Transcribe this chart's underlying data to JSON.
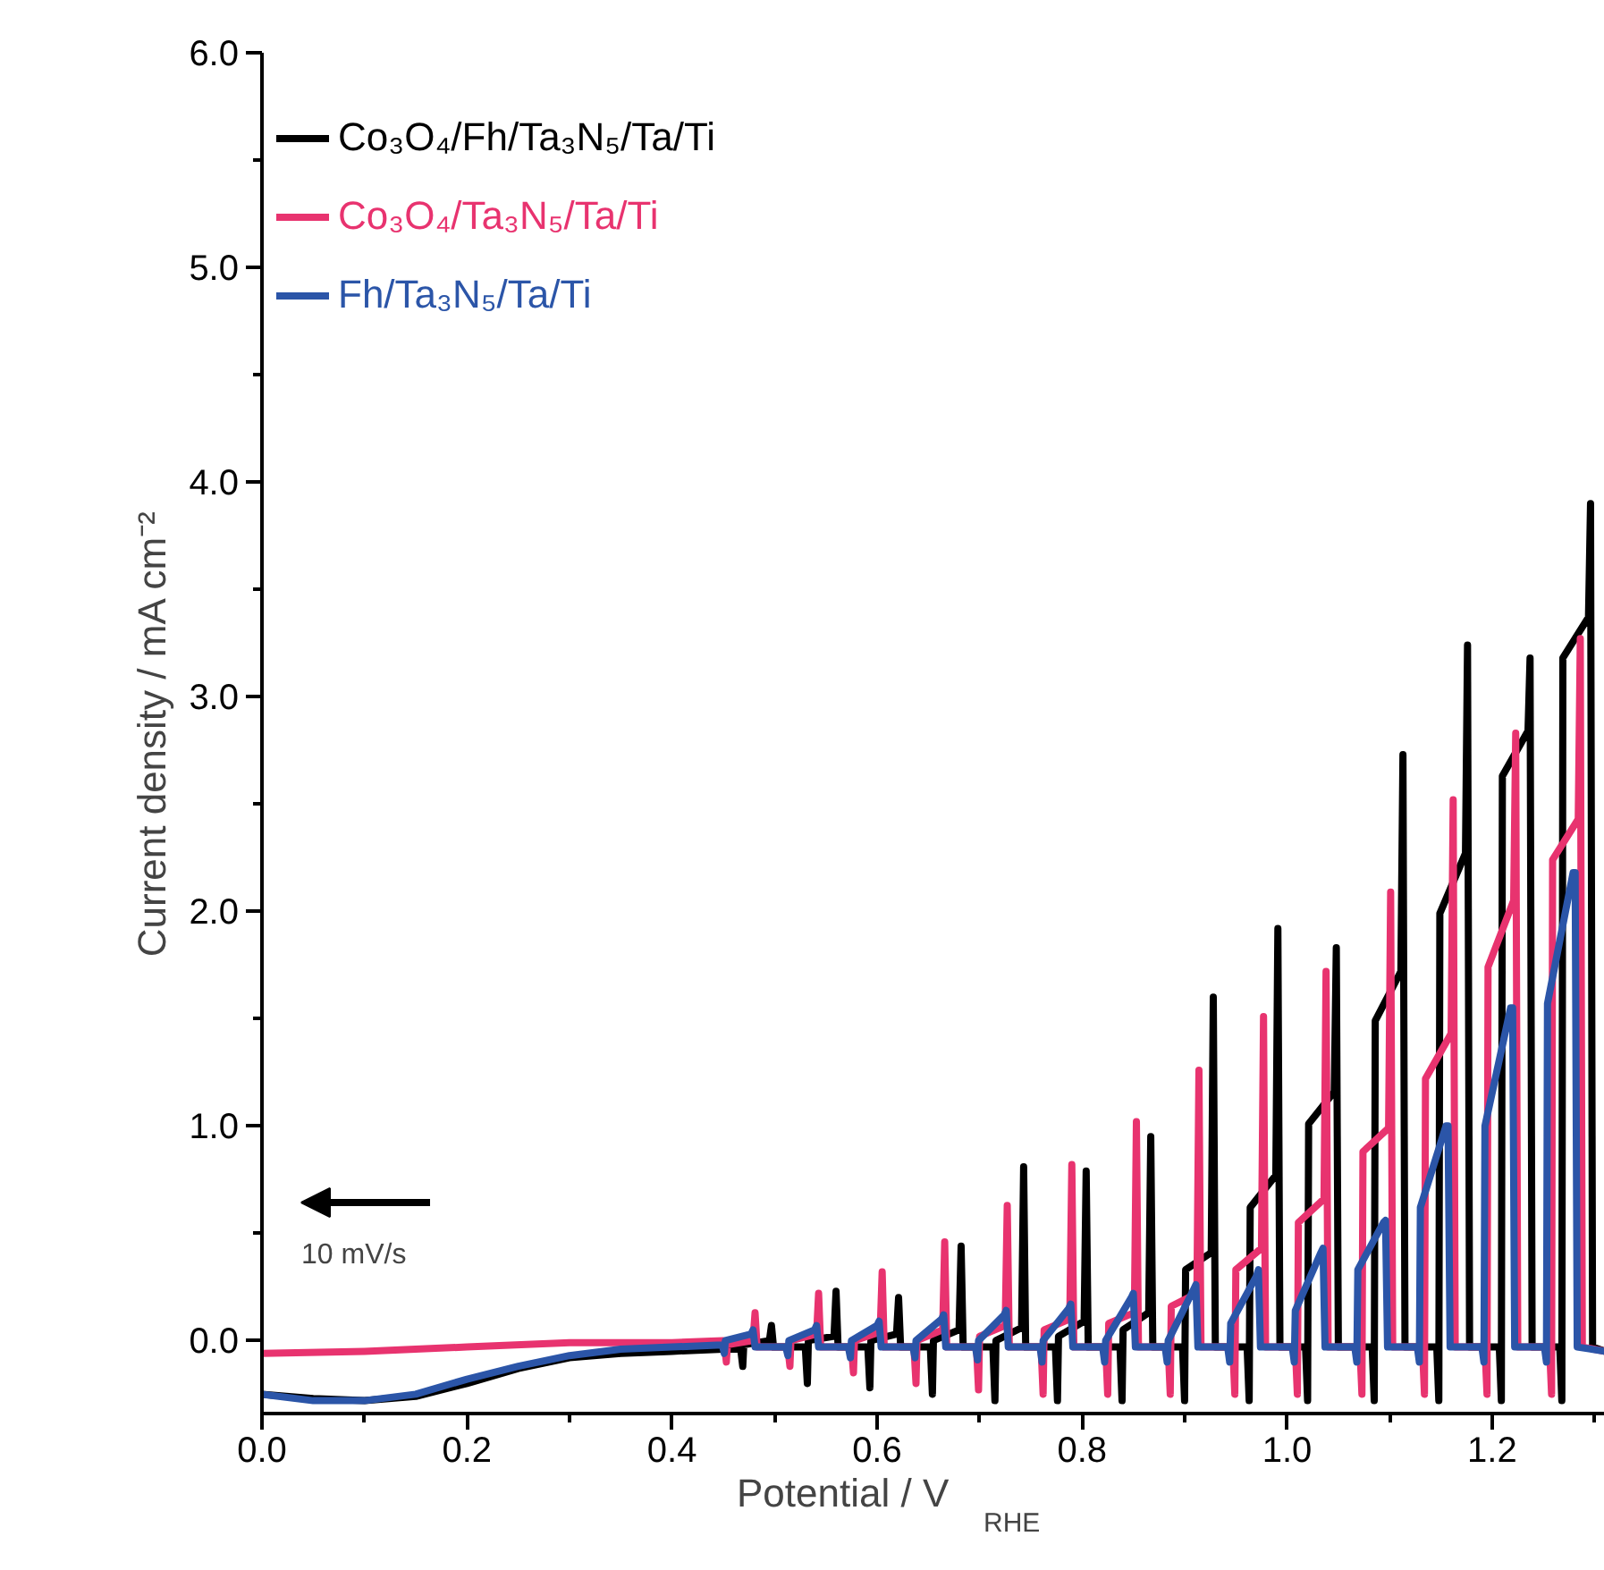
{
  "chart_data": {
    "type": "line",
    "xlabel": "Potential / V$_{RHE}$",
    "ylabel": "Current density / mA cm⁻²",
    "xlim": [
      0,
      1.31
    ],
    "ylim": [
      -0.34,
      6.0
    ],
    "xticks": [
      {
        "value": 0,
        "label": "0.0"
      },
      {
        "value": 0.1,
        "label": null
      },
      {
        "value": 0.2,
        "label": "0.2"
      },
      {
        "value": 0.3,
        "label": null
      },
      {
        "value": 0.4,
        "label": "0.4"
      },
      {
        "value": 0.5,
        "label": null
      },
      {
        "value": 0.6,
        "label": "0.6"
      },
      {
        "value": 0.7,
        "label": null
      },
      {
        "value": 0.8,
        "label": "0.8"
      },
      {
        "value": 0.9,
        "label": null
      },
      {
        "value": 1.0,
        "label": "1.0"
      },
      {
        "value": 1.1,
        "label": null
      },
      {
        "value": 1.2,
        "label": "1.2"
      },
      {
        "value": 1.3,
        "label": null
      }
    ],
    "yticks": [
      {
        "value": 0,
        "label": "0.0"
      },
      {
        "value": 0.5,
        "label": null
      },
      {
        "value": 1,
        "label": "1.0"
      },
      {
        "value": 1.5,
        "label": null
      },
      {
        "value": 2,
        "label": "2.0"
      },
      {
        "value": 2.5,
        "label": null
      },
      {
        "value": 3,
        "label": "3.0"
      },
      {
        "value": 3.5,
        "label": null
      },
      {
        "value": 4,
        "label": "4.0"
      },
      {
        "value": 4.5,
        "label": null
      },
      {
        "value": 5,
        "label": "5.0"
      },
      {
        "value": 5.5,
        "label": null
      },
      {
        "value": 6,
        "label": "6.0"
      }
    ],
    "grid": false,
    "legend": "top left",
    "marker": "none",
    "line_style": "solid",
    "annotations": [
      "10 mV/s"
    ],
    "series": [
      {
        "name": "Co₃O₄/Fh/Ta₃N₅/Ta/Ti",
        "color": "#000000",
        "x": [
          0,
          0.05,
          0.1,
          0.15,
          0.2,
          0.25,
          0.3,
          0.35,
          0.4,
          0.45,
          0.467,
          0.469,
          0.47,
          0.495,
          0.497,
          0.499,
          0.53,
          0.532,
          0.533,
          0.558,
          0.56,
          0.562,
          0.591,
          0.593,
          0.594,
          0.619,
          0.621,
          0.623,
          0.652,
          0.654,
          0.655,
          0.68,
          0.682,
          0.684,
          0.713,
          0.715,
          0.716,
          0.741,
          0.743,
          0.745,
          0.774,
          0.776,
          0.777,
          0.802,
          0.804,
          0.806,
          0.837,
          0.839,
          0.84,
          0.865,
          0.867,
          0.869,
          0.898,
          0.9,
          0.901,
          0.926,
          0.928,
          0.93,
          0.961,
          0.963,
          0.964,
          0.989,
          0.991,
          0.993,
          1.018,
          1.02,
          1.021,
          1.046,
          1.048,
          1.05,
          1.083,
          1.085,
          1.086,
          1.111,
          1.113,
          1.115,
          1.146,
          1.148,
          1.149,
          1.174,
          1.176,
          1.178,
          1.207,
          1.209,
          1.21,
          1.235,
          1.237,
          1.239,
          1.266,
          1.268,
          1.269,
          1.294,
          1.296,
          1.298,
          1.31
        ],
        "values": [
          -0.25,
          -0.27,
          -0.28,
          -0.26,
          -0.2,
          -0.13,
          -0.08,
          -0.06,
          -0.05,
          -0.04,
          -0.04,
          -0.12,
          -0.02,
          0.0,
          0.07,
          -0.03,
          -0.03,
          -0.2,
          0.0,
          0.02,
          0.23,
          -0.03,
          -0.03,
          -0.22,
          0.0,
          0.03,
          0.2,
          -0.03,
          -0.03,
          -0.25,
          0.0,
          0.05,
          0.44,
          -0.03,
          -0.03,
          -0.28,
          0.0,
          0.06,
          0.81,
          -0.03,
          -0.03,
          -0.28,
          0.02,
          0.09,
          0.79,
          -0.03,
          -0.03,
          -0.28,
          0.05,
          0.13,
          0.95,
          -0.03,
          -0.03,
          -0.28,
          0.33,
          0.41,
          1.6,
          -0.03,
          -0.03,
          -0.28,
          0.62,
          0.77,
          1.92,
          -0.03,
          -0.03,
          -0.28,
          1.01,
          1.16,
          1.83,
          -0.03,
          -0.03,
          -0.28,
          1.49,
          1.72,
          2.73,
          -0.03,
          -0.03,
          -0.28,
          1.99,
          2.27,
          3.24,
          -0.03,
          -0.03,
          -0.28,
          2.63,
          2.84,
          3.18,
          -0.03,
          -0.03,
          -0.28,
          3.18,
          3.37,
          3.9,
          -0.03,
          -0.05
        ]
      },
      {
        "name": "Co₃O₄/Ta₃N₅/Ta/Ti",
        "color": "#e8336f",
        "x": [
          0,
          0.1,
          0.2,
          0.3,
          0.4,
          0.45,
          0.451,
          0.453,
          0.454,
          0.479,
          0.481,
          0.483,
          0.513,
          0.515,
          0.516,
          0.541,
          0.543,
          0.545,
          0.575,
          0.577,
          0.578,
          0.603,
          0.605,
          0.607,
          0.636,
          0.638,
          0.639,
          0.664,
          0.666,
          0.668,
          0.697,
          0.699,
          0.7,
          0.725,
          0.727,
          0.729,
          0.76,
          0.762,
          0.763,
          0.788,
          0.79,
          0.792,
          0.823,
          0.825,
          0.826,
          0.851,
          0.853,
          0.855,
          0.884,
          0.886,
          0.887,
          0.912,
          0.914,
          0.916,
          0.947,
          0.949,
          0.95,
          0.975,
          0.977,
          0.979,
          1.008,
          1.01,
          1.011,
          1.036,
          1.038,
          1.04,
          1.071,
          1.073,
          1.074,
          1.099,
          1.101,
          1.103,
          1.132,
          1.134,
          1.135,
          1.16,
          1.162,
          1.164,
          1.193,
          1.195,
          1.196,
          1.221,
          1.223,
          1.225,
          1.256,
          1.258,
          1.259,
          1.284,
          1.286,
          1.288,
          1.31
        ],
        "values": [
          -0.06,
          -0.05,
          -0.03,
          -0.01,
          -0.01,
          0.0,
          -0.01,
          -0.1,
          -0.02,
          0.0,
          0.13,
          -0.03,
          -0.03,
          -0.12,
          0.0,
          0.03,
          0.22,
          -0.03,
          -0.03,
          -0.15,
          0.0,
          0.04,
          0.32,
          -0.03,
          -0.03,
          -0.2,
          0.0,
          0.05,
          0.46,
          -0.03,
          -0.03,
          -0.23,
          0.02,
          0.07,
          0.63,
          -0.03,
          -0.03,
          -0.25,
          0.05,
          0.1,
          0.82,
          -0.03,
          -0.03,
          -0.25,
          0.08,
          0.13,
          1.02,
          -0.03,
          -0.03,
          -0.25,
          0.16,
          0.22,
          1.26,
          -0.03,
          -0.03,
          -0.25,
          0.33,
          0.43,
          1.51,
          -0.03,
          -0.03,
          -0.25,
          0.55,
          0.66,
          1.72,
          -0.03,
          -0.03,
          -0.25,
          0.88,
          0.99,
          2.09,
          -0.03,
          -0.03,
          -0.25,
          1.22,
          1.43,
          2.52,
          -0.03,
          -0.03,
          -0.25,
          1.74,
          2.05,
          2.83,
          -0.03,
          -0.03,
          -0.25,
          2.24,
          2.43,
          3.27,
          -0.03,
          -0.05
        ]
      },
      {
        "name": "Fh/Ta₃N₅/Ta/Ti",
        "color": "#2b55a8",
        "x": [
          0,
          0.05,
          0.1,
          0.15,
          0.2,
          0.25,
          0.3,
          0.35,
          0.4,
          0.449,
          0.451,
          0.452,
          0.477,
          0.479,
          0.481,
          0.511,
          0.513,
          0.514,
          0.539,
          0.541,
          0.543,
          0.572,
          0.574,
          0.575,
          0.6,
          0.602,
          0.604,
          0.635,
          0.637,
          0.638,
          0.663,
          0.665,
          0.667,
          0.696,
          0.698,
          0.699,
          0.724,
          0.726,
          0.728,
          0.759,
          0.761,
          0.762,
          0.787,
          0.789,
          0.791,
          0.82,
          0.822,
          0.823,
          0.848,
          0.85,
          0.852,
          0.881,
          0.883,
          0.884,
          0.909,
          0.911,
          0.913,
          0.942,
          0.944,
          0.945,
          0.97,
          0.972,
          0.974,
          1.005,
          1.007,
          1.008,
          1.033,
          1.035,
          1.037,
          1.066,
          1.068,
          1.069,
          1.094,
          1.096,
          1.098,
          1.127,
          1.129,
          1.13,
          1.155,
          1.157,
          1.159,
          1.19,
          1.192,
          1.193,
          1.218,
          1.22,
          1.222,
          1.251,
          1.253,
          1.254,
          1.279,
          1.281,
          1.283,
          1.31
        ],
        "values": [
          -0.25,
          -0.28,
          -0.28,
          -0.25,
          -0.18,
          -0.12,
          -0.07,
          -0.04,
          -0.03,
          -0.02,
          -0.06,
          0.0,
          0.03,
          0.05,
          -0.03,
          -0.03,
          -0.07,
          0.0,
          0.05,
          0.07,
          -0.03,
          -0.03,
          -0.08,
          0.0,
          0.07,
          0.09,
          -0.03,
          -0.03,
          -0.08,
          0.0,
          0.1,
          0.12,
          -0.03,
          -0.03,
          -0.09,
          0.0,
          0.12,
          0.14,
          -0.03,
          -0.03,
          -0.1,
          0.0,
          0.15,
          0.17,
          -0.03,
          -0.03,
          -0.1,
          0.0,
          0.2,
          0.22,
          -0.03,
          -0.03,
          -0.1,
          0.0,
          0.24,
          0.26,
          -0.03,
          -0.03,
          -0.1,
          0.08,
          0.3,
          0.33,
          -0.03,
          -0.03,
          -0.1,
          0.14,
          0.41,
          0.43,
          -0.03,
          -0.03,
          -0.1,
          0.33,
          0.55,
          0.56,
          -0.03,
          -0.03,
          -0.1,
          0.62,
          1.0,
          1.0,
          -0.03,
          -0.03,
          -0.1,
          1.0,
          1.55,
          1.55,
          -0.03,
          -0.03,
          -0.1,
          1.57,
          2.18,
          2.18,
          -0.03,
          -0.05
        ]
      }
    ]
  }
}
